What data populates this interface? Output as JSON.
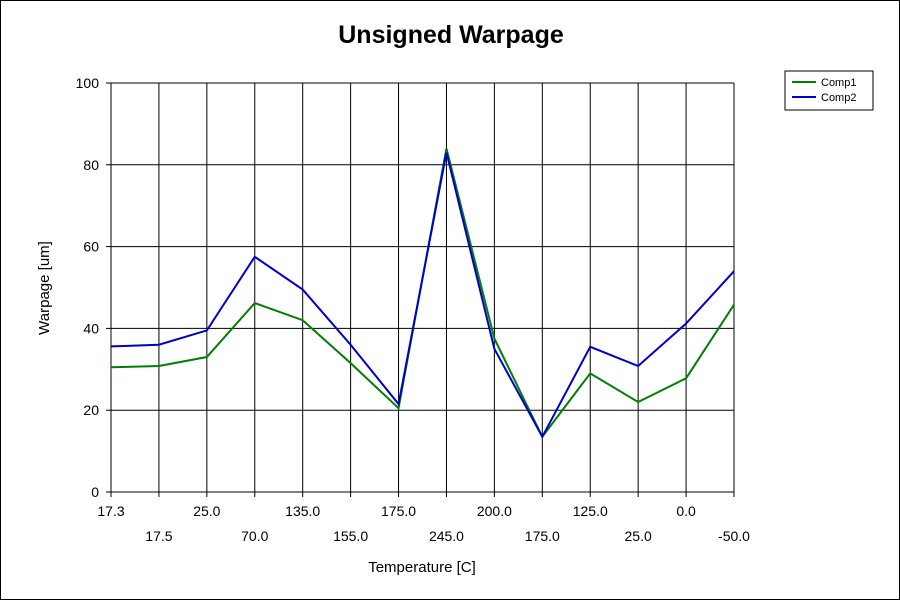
{
  "chart_data": {
    "type": "line",
    "title": "Unsigned Warpage",
    "xlabel": "Temperature [C]",
    "ylabel": "Warpage [um]",
    "x": [
      "17.3",
      "17.5",
      "25.0",
      "70.0",
      "135.0",
      "155.0",
      "175.0",
      "245.0",
      "200.0",
      "175.0",
      "125.0",
      "25.0",
      "0.0",
      "-50.0"
    ],
    "ylim": [
      0,
      100
    ],
    "yticks": [
      0,
      20,
      40,
      60,
      80,
      100
    ],
    "grid": true,
    "legend_position": "top-right",
    "series": [
      {
        "name": "Comp1",
        "color": "#008000",
        "values": [
          30.5,
          30.8,
          33.0,
          46.2,
          42.0,
          31.5,
          20.5,
          84.0,
          37.5,
          13.5,
          29.0,
          22.0,
          27.8,
          45.8
        ]
      },
      {
        "name": "Comp2",
        "color": "#0000CC",
        "values": [
          35.6,
          36.0,
          39.5,
          57.5,
          49.5,
          36.0,
          21.5,
          83.0,
          35.0,
          13.5,
          35.5,
          30.8,
          41.2,
          54.0
        ]
      }
    ]
  }
}
